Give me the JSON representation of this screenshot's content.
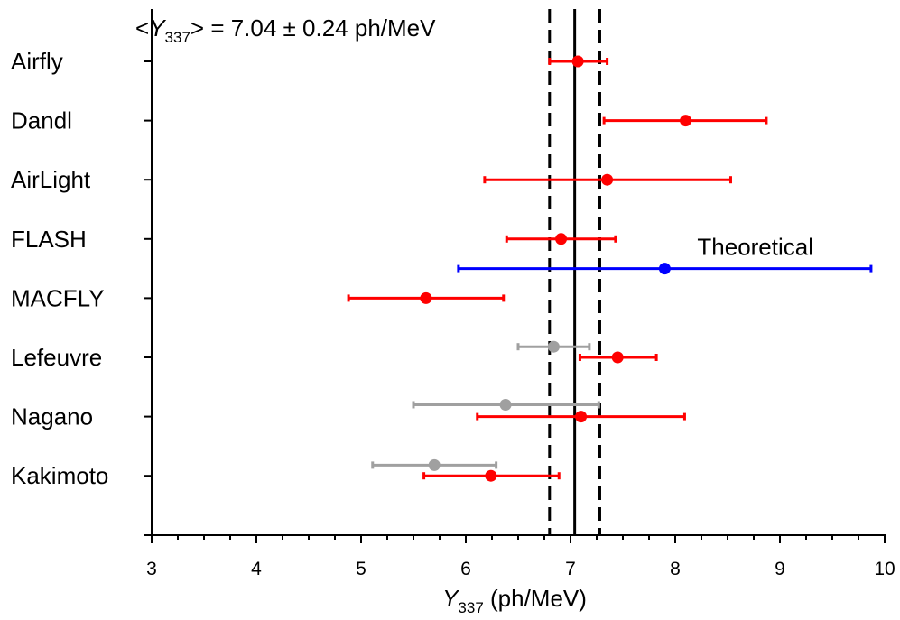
{
  "chart_data": {
    "type": "scatter",
    "title": "",
    "annotation": {
      "prefix": "<",
      "symbol": "Y",
      "subscript": "337",
      "suffix": "> = 7.04 ± 0.24 ph/MeV",
      "mean": 7.04,
      "uncertainty": 0.24
    },
    "xlabel": {
      "symbol": "Y",
      "subscript": "337",
      "unit": " (ph/MeV)"
    },
    "xlim": [
      3,
      10
    ],
    "xticks": [
      3,
      4,
      5,
      6,
      7,
      8,
      9,
      10
    ],
    "categories": [
      "Airfly",
      "Dandl",
      "AirLight",
      "FLASH",
      "MACFLY",
      "Lefeuvre",
      "Nagano",
      "Kakimoto"
    ],
    "reference_lines": {
      "mean": 7.04,
      "band": [
        6.8,
        7.28
      ],
      "mean_style": "solid",
      "band_style": "dashed"
    },
    "series": [
      {
        "color": "#ff0000",
        "points": [
          {
            "category": "Airfly",
            "offset": 0,
            "value": 7.07,
            "err_low": 6.8,
            "err_high": 7.35
          },
          {
            "category": "Dandl",
            "offset": 0,
            "value": 8.1,
            "err_low": 7.32,
            "err_high": 8.87
          },
          {
            "category": "AirLight",
            "offset": 0,
            "value": 7.35,
            "err_low": 6.18,
            "err_high": 8.53
          },
          {
            "category": "FLASH",
            "offset": 0,
            "value": 6.91,
            "err_low": 6.39,
            "err_high": 7.43
          },
          {
            "category": "MACFLY",
            "offset": 0,
            "value": 5.62,
            "err_low": 4.88,
            "err_high": 6.36
          },
          {
            "category": "Lefeuvre",
            "offset": 0,
            "value": 7.45,
            "err_low": 7.09,
            "err_high": 7.82
          },
          {
            "category": "Nagano",
            "offset": 0,
            "value": 7.1,
            "err_low": 6.11,
            "err_high": 8.09
          },
          {
            "category": "Kakimoto",
            "offset": 0,
            "value": 6.24,
            "err_low": 5.6,
            "err_high": 6.89
          }
        ]
      },
      {
        "color": "#a0a0a0",
        "points": [
          {
            "category": "Lefeuvre",
            "offset": -0.18,
            "value": 6.84,
            "err_low": 6.5,
            "err_high": 7.18
          },
          {
            "category": "Nagano",
            "offset": -0.2,
            "value": 6.38,
            "err_low": 5.5,
            "err_high": 7.27
          },
          {
            "category": "Kakimoto",
            "offset": -0.18,
            "value": 5.7,
            "err_low": 5.11,
            "err_high": 6.29
          }
        ]
      },
      {
        "name": "Theoretical",
        "color": "#0000ff",
        "points": [
          {
            "category": "FLASH",
            "offset": 0.5,
            "value": 7.9,
            "err_low": 5.93,
            "err_high": 9.87
          }
        ]
      }
    ],
    "grid": false,
    "legend": "none"
  }
}
